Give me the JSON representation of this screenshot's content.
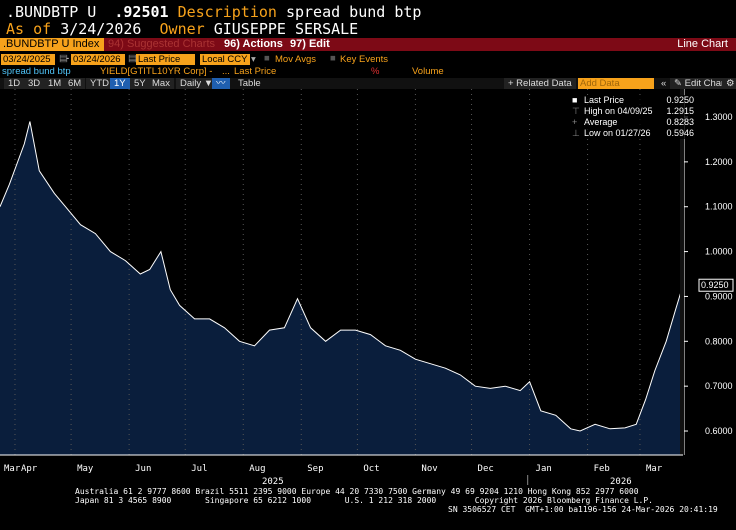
{
  "header": {
    "ticker": ".BUNDBTP U",
    "price": ".92501",
    "desc_label": "Description",
    "desc": "spread bund btp",
    "asof_label": "As of",
    "asof": "3/24/2026",
    "owner_label": "Owner",
    "owner": "GIUSEPPE SERSALE"
  },
  "menubar": {
    "security": ".BUNDBTP U Index",
    "suggested": "94) Suggested Charts",
    "actions": "96) Actions",
    "edit": "97) Edit",
    "chart_type": "Line Chart"
  },
  "controls": {
    "start_date": "03/24/2025",
    "end_date": "03/24/2026",
    "field": "Last Price",
    "currency": "Local CCY",
    "mov_avgs": "Mov Avgs",
    "key_events": "Key Events"
  },
  "series_row": {
    "name": "spread bund btp",
    "yield": "YIELD[GTITL10YR Corp] -",
    "dots": "...",
    "last_price": "Last Price",
    "pct": "%",
    "volume": "Volume"
  },
  "toolbar": {
    "periods": [
      "1D",
      "3D",
      "1M",
      "6M",
      "YTD",
      "1Y",
      "5Y",
      "Max"
    ],
    "selected": "1Y",
    "frequency": "Daily",
    "table": "Table",
    "related": "+ Related Data",
    "add_data": "Add Data",
    "edit_chart": "Edit Chart"
  },
  "legend": [
    {
      "label": "Last Price",
      "value": "0.9250"
    },
    {
      "label": "High on 04/09/25",
      "value": "1.2915"
    },
    {
      "label": "Average",
      "value": "0.8283"
    },
    {
      "label": "Low on 01/27/26",
      "value": "0.5946"
    }
  ],
  "footer": {
    "line1": "Australia 61 2 9777 8600 Brazil 5511 2395 9000 Europe 44 20 7330 7500 Germany 49 69 9204 1210 Hong Kong 852 2977 6000",
    "line2": "Japan 81 3 4565 8900       Singapore 65 6212 1000       U.S. 1 212 318 2000        Copyright 2026 Bloomberg Finance L.P.",
    "line3": "SN 3506527 CET  GMT+1:00 ba1196-156 24-Mar-2026 20:41:19"
  },
  "colors": {
    "fill": "#0a1e3c",
    "line": "#ffffff",
    "accent": "#f7a21b",
    "bar": "#7d0a16"
  },
  "chart_data": {
    "type": "area",
    "title": "spread bund btp",
    "ylim": [
      0.55,
      1.35
    ],
    "yticks": [
      "0.6000",
      "0.7000",
      "0.8000",
      "0.9000",
      "1.0000",
      "1.1000",
      "1.2000",
      "1.3000"
    ],
    "last_label": "0.9250",
    "xticks": [
      {
        "label": "Mar",
        "day": -6
      },
      {
        "label": "Apr",
        "day": 8
      },
      {
        "label": "May",
        "day": 38
      },
      {
        "label": "Jun",
        "day": 69
      },
      {
        "label": "Jul",
        "day": 99
      },
      {
        "label": "Aug",
        "day": 130
      },
      {
        "label": "Sep",
        "day": 161
      },
      {
        "label": "Oct",
        "day": 191
      },
      {
        "label": "Nov",
        "day": 222
      },
      {
        "label": "Dec",
        "day": 252
      },
      {
        "label": "Jan",
        "day": 283
      },
      {
        "label": "Feb",
        "day": 314
      },
      {
        "label": "Mar",
        "day": 342
      }
    ],
    "years": [
      {
        "label": "2025",
        "day": 140
      },
      {
        "label": "2026",
        "day": 326
      }
    ],
    "x_days": [
      0,
      5,
      13,
      16,
      21,
      29,
      35,
      43,
      51,
      59,
      67,
      75,
      80,
      86,
      91,
      96,
      104,
      112,
      120,
      128,
      136,
      144,
      152,
      159,
      166,
      174,
      182,
      190,
      198,
      206,
      214,
      222,
      230,
      238,
      246,
      254,
      262,
      270,
      278,
      283,
      289,
      297,
      305,
      310,
      318,
      326,
      334,
      340,
      345,
      350,
      356,
      361,
      365
    ],
    "values": [
      1.1,
      1.15,
      1.24,
      1.29,
      1.18,
      1.13,
      1.1,
      1.06,
      1.04,
      1.0,
      0.98,
      0.95,
      0.96,
      1.0,
      0.915,
      0.88,
      0.85,
      0.85,
      0.83,
      0.8,
      0.79,
      0.825,
      0.83,
      0.895,
      0.83,
      0.8,
      0.825,
      0.825,
      0.815,
      0.79,
      0.78,
      0.76,
      0.75,
      0.74,
      0.725,
      0.7,
      0.695,
      0.7,
      0.69,
      0.71,
      0.645,
      0.635,
      0.605,
      0.6,
      0.615,
      0.605,
      0.607,
      0.615,
      0.67,
      0.735,
      0.8,
      0.87,
      0.925
    ]
  }
}
